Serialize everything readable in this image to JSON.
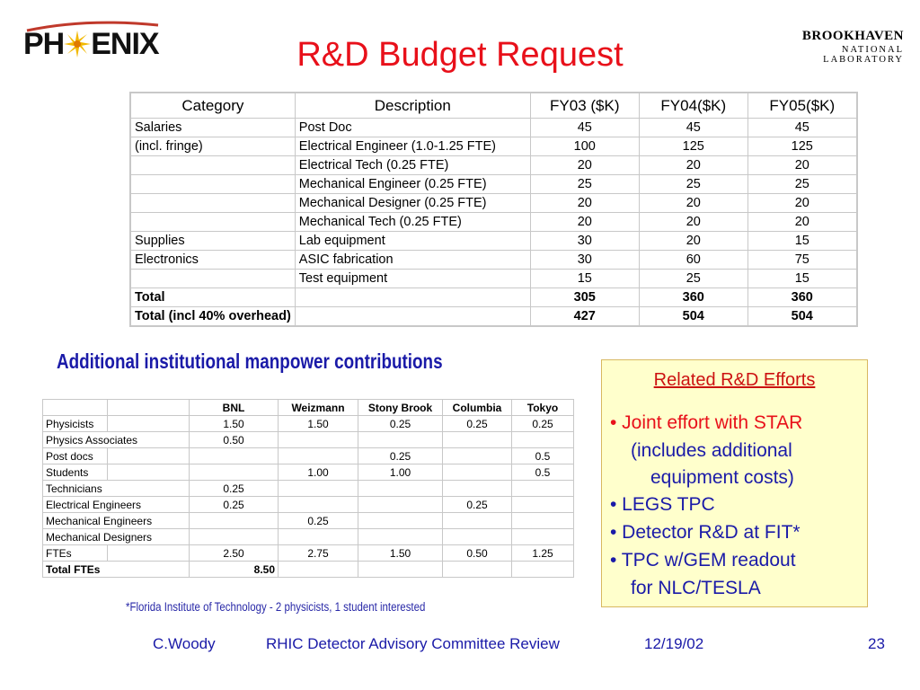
{
  "logos": {
    "phenix_left": "PH",
    "phenix_right": "ENIX",
    "bnl_name": "BROOKHAVEN",
    "bnl_sub": "NATIONAL LABORATORY"
  },
  "title": "R&D Budget Request",
  "budget_table": {
    "headers": [
      "Category",
      "Description",
      "FY03 ($K)",
      "FY04($K)",
      "FY05($K)"
    ],
    "rows": [
      [
        "Salaries",
        "Post Doc",
        "45",
        "45",
        "45"
      ],
      [
        "(incl. fringe)",
        "Electrical Engineer (1.0-1.25  FTE)",
        "100",
        "125",
        "125"
      ],
      [
        "",
        "Electrical Tech (0.25 FTE)",
        "20",
        "20",
        "20"
      ],
      [
        "",
        "Mechanical Engineer (0.25 FTE)",
        "25",
        "25",
        "25"
      ],
      [
        "",
        "Mechanical Designer (0.25 FTE)",
        "20",
        "20",
        "20"
      ],
      [
        "",
        "Mechanical Tech (0.25 FTE)",
        "20",
        "20",
        "20"
      ],
      [
        "Supplies",
        "Lab equipment",
        "30",
        "20",
        "15"
      ],
      [
        "Electronics",
        "ASIC fabrication",
        "30",
        "60",
        "75"
      ],
      [
        "",
        "Test equipment",
        "15",
        "25",
        "15"
      ],
      [
        "Total",
        "",
        "305",
        "360",
        "360"
      ],
      [
        "Total (incl 40% overhead)",
        "",
        "427",
        "504",
        "504"
      ]
    ]
  },
  "subheading": "Additional institutional manpower contributions",
  "manpower_table": {
    "headers": [
      "",
      "",
      "BNL",
      "Weizmann",
      "Stony Brook",
      "Columbia",
      "Tokyo"
    ],
    "rows": [
      [
        "Physicists",
        "",
        "1.50",
        "1.50",
        "0.25",
        "0.25",
        "0.25"
      ],
      [
        "Physics Associates",
        "",
        "0.50",
        "",
        "",
        "",
        ""
      ],
      [
        "Post docs",
        "",
        "",
        "",
        "0.25",
        "",
        "0.5"
      ],
      [
        "Students",
        "",
        "",
        "1.00",
        "1.00",
        "",
        "0.5"
      ],
      [
        "Technicians",
        "",
        "0.25",
        "",
        "",
        "",
        ""
      ],
      [
        "Electrical Engineers",
        "",
        "0.25",
        "",
        "",
        "0.25",
        ""
      ],
      [
        "Mechanical Engineers",
        "",
        "",
        "0.25",
        "",
        "",
        ""
      ],
      [
        "Mechanical Designers",
        "",
        "",
        "",
        "",
        "",
        ""
      ],
      [
        "FTEs",
        "",
        "2.50",
        "2.75",
        "1.50",
        "0.50",
        "1.25"
      ],
      [
        "Total FTEs",
        "",
        "8.50",
        "",
        "",
        "",
        ""
      ]
    ]
  },
  "footnote": "*Florida Institute of Technology - 2 physicists, 1 student interested",
  "related": {
    "title": "Related R&D Efforts",
    "line1": "• Joint effort with STAR",
    "line2": "(includes additional",
    "line3": "equipment costs)",
    "line4": "• LEGS TPC",
    "line5": "• Detector R&D at FIT*",
    "line6": "• TPC w/GEM readout",
    "line7": "for NLC/TESLA"
  },
  "footer": {
    "author": "C.Woody",
    "event": "RHIC Detector Advisory Committee Review",
    "date": "12/19/02",
    "page": "23"
  },
  "colors": {
    "title": "#e8101a",
    "subheading": "#1a1aa8",
    "box_background": "#ffffcc"
  }
}
